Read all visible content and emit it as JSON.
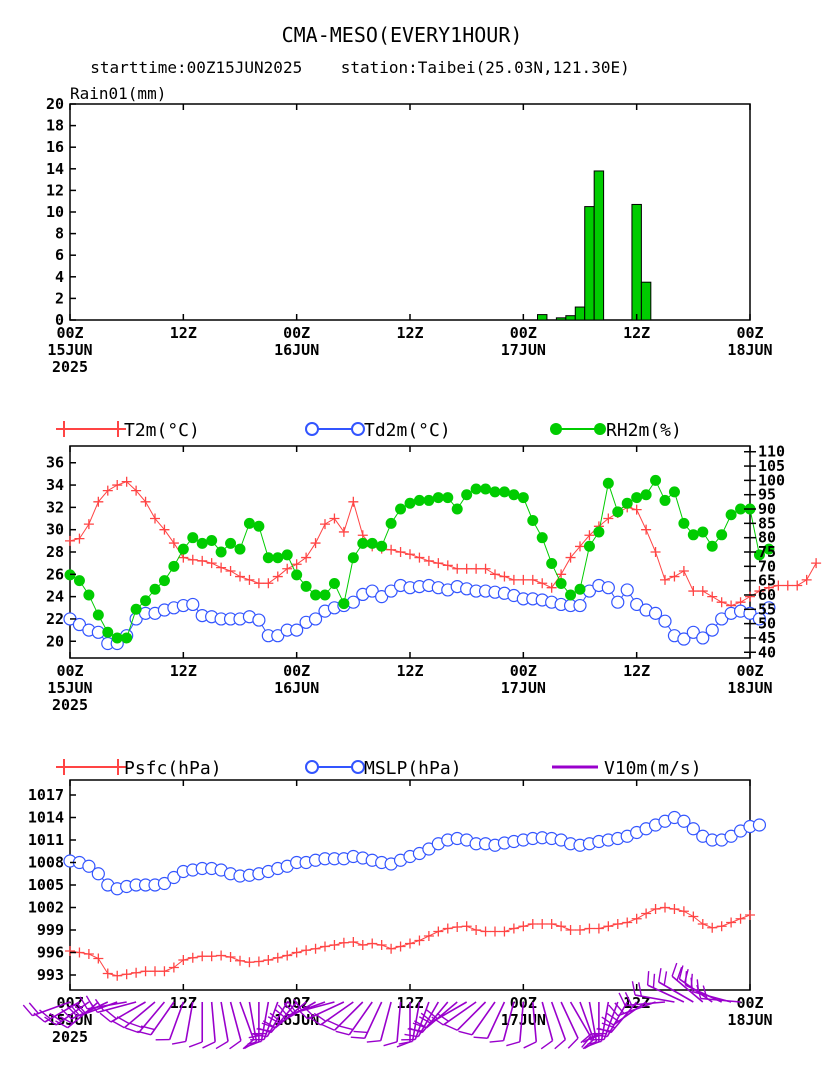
{
  "header": {
    "title": "CMA-MESO(EVERY1HOUR)",
    "subtitle": "starttime:00Z15JUN2025    station:Taibei(25.03N,121.30E)"
  },
  "x_axis": {
    "hours_total": 72,
    "ticks": [
      {
        "hour": 0,
        "line1": "00Z",
        "line2": "15JUN",
        "line3": "2025"
      },
      {
        "hour": 12,
        "line1": "12Z",
        "line2": "",
        "line3": ""
      },
      {
        "hour": 24,
        "line1": "00Z",
        "line2": "16JUN",
        "line3": ""
      },
      {
        "hour": 36,
        "line1": "12Z",
        "line2": "",
        "line3": ""
      },
      {
        "hour": 48,
        "line1": "00Z",
        "line2": "17JUN",
        "line3": ""
      },
      {
        "hour": 60,
        "line1": "12Z",
        "line2": "",
        "line3": ""
      },
      {
        "hour": 72,
        "line1": "00Z",
        "line2": "18JUN",
        "line3": ""
      }
    ]
  },
  "chart_data": [
    {
      "type": "bar",
      "title": "Rain01(mm)",
      "ylim": [
        0,
        20
      ],
      "yticks": [
        0,
        2,
        4,
        6,
        8,
        10,
        12,
        14,
        16,
        18,
        20
      ],
      "color": "#00cc00",
      "bars": [
        {
          "hour": 50,
          "value": 0.5
        },
        {
          "hour": 52,
          "value": 0.2
        },
        {
          "hour": 53,
          "value": 0.4
        },
        {
          "hour": 54,
          "value": 1.2
        },
        {
          "hour": 55,
          "value": 10.5
        },
        {
          "hour": 56,
          "value": 13.8
        },
        {
          "hour": 60,
          "value": 10.7
        },
        {
          "hour": 61,
          "value": 3.5
        }
      ]
    },
    {
      "type": "line",
      "ylim_left": [
        18.5,
        37.5
      ],
      "yticks_left": [
        20,
        22,
        24,
        26,
        28,
        30,
        32,
        34,
        36
      ],
      "ylim_right": [
        38,
        112
      ],
      "yticks_right": [
        40,
        45,
        50,
        55,
        60,
        65,
        70,
        75,
        80,
        85,
        90,
        95,
        100,
        105,
        110
      ],
      "series": [
        {
          "name": "T2m(°C)",
          "axis": "left",
          "marker": "plus",
          "color": "#ff4444",
          "values": [
            29.0,
            29.2,
            30.5,
            32.5,
            33.5,
            34.0,
            34.3,
            33.5,
            32.5,
            31.0,
            30.0,
            28.8,
            27.5,
            27.3,
            27.2,
            27.0,
            26.6,
            26.3,
            25.8,
            25.5,
            25.2,
            25.2,
            25.8,
            26.5,
            26.9,
            27.5,
            28.8,
            30.5,
            31.0,
            29.8,
            32.5,
            29.5,
            28.5,
            28.3,
            28.2,
            28.0,
            27.8,
            27.5,
            27.2,
            27.0,
            26.8,
            26.5,
            26.5,
            26.5,
            26.5,
            26.0,
            25.8,
            25.5,
            25.5,
            25.5,
            25.2,
            24.8,
            26.0,
            27.5,
            28.5,
            29.5,
            30.3,
            31.0,
            31.5,
            32.0,
            31.8,
            30.0,
            28.0,
            25.5,
            25.8,
            26.3,
            24.5,
            24.5,
            24.0,
            23.5,
            23.2,
            23.5,
            24.0,
            24.5,
            24.8,
            25.0,
            25.0,
            25.0,
            25.5,
            27.0
          ]
        },
        {
          "name": "Td2m(°C)",
          "axis": "left",
          "marker": "circle",
          "color": "#3355ff",
          "values": [
            22.0,
            21.5,
            21.0,
            20.8,
            19.8,
            19.8,
            20.5,
            22.0,
            22.5,
            22.5,
            22.8,
            23.0,
            23.2,
            23.3,
            22.3,
            22.2,
            22.0,
            22.0,
            22.0,
            22.2,
            21.9,
            20.5,
            20.5,
            21.0,
            21.0,
            21.7,
            22.0,
            22.7,
            23.0,
            23.2,
            23.5,
            24.2,
            24.5,
            24.0,
            24.5,
            25.0,
            24.8,
            24.9,
            25.0,
            24.8,
            24.6,
            24.9,
            24.7,
            24.5,
            24.5,
            24.4,
            24.3,
            24.1,
            23.8,
            23.8,
            23.7,
            23.5,
            23.3,
            23.2,
            23.2,
            24.5,
            25.0,
            24.8,
            23.5,
            24.6,
            23.3,
            22.8,
            22.5,
            21.8,
            20.5,
            20.2,
            20.8,
            20.3,
            21.0,
            22.0,
            22.5,
            22.7,
            22.5,
            22.0,
            23.0
          ]
        },
        {
          "name": "RH2m(%)",
          "axis": "right",
          "marker": "dot",
          "color": "#00cc00",
          "values": [
            67,
            65,
            60,
            53,
            47,
            45,
            45,
            55,
            58,
            62,
            65,
            70,
            76,
            80,
            78,
            79,
            75,
            78,
            76,
            85,
            84,
            73,
            73,
            74,
            67,
            63,
            60,
            60,
            64,
            57,
            73,
            78,
            78,
            77,
            85,
            90,
            92,
            93,
            93,
            94,
            94,
            90,
            95,
            97,
            97,
            96,
            96,
            95,
            94,
            86,
            80,
            71,
            64,
            60,
            62,
            77,
            82,
            99,
            89,
            92,
            94,
            95,
            100,
            93,
            96,
            85,
            81,
            82,
            77,
            81,
            88,
            90,
            90,
            74,
            76
          ]
        }
      ]
    },
    {
      "type": "line",
      "ylim": [
        991,
        1019
      ],
      "yticks": [
        993,
        996,
        999,
        1002,
        1005,
        1008,
        1011,
        1014,
        1017
      ],
      "series": [
        {
          "name": "Psfc(hPa)",
          "marker": "plus",
          "color": "#ff4444",
          "values": [
            996.2,
            996.0,
            995.8,
            995.2,
            993.2,
            992.9,
            993.1,
            993.3,
            993.5,
            993.5,
            993.5,
            994.0,
            995.0,
            995.3,
            995.5,
            995.5,
            995.6,
            995.4,
            994.9,
            994.7,
            994.8,
            995.0,
            995.3,
            995.6,
            996.0,
            996.3,
            996.5,
            996.8,
            997.0,
            997.3,
            997.4,
            997.0,
            997.2,
            997.0,
            996.5,
            996.8,
            997.2,
            997.6,
            998.2,
            998.8,
            999.2,
            999.4,
            999.5,
            999.0,
            998.8,
            998.8,
            998.8,
            999.2,
            999.5,
            999.8,
            999.8,
            999.8,
            999.5,
            999.0,
            999.0,
            999.2,
            999.2,
            999.5,
            999.8,
            1000.0,
            1000.5,
            1001.2,
            1001.8,
            1002.0,
            1001.8,
            1001.5,
            1000.8,
            999.8,
            999.3,
            999.5,
            1000.0,
            1000.5,
            1001.0
          ]
        },
        {
          "name": "MSLP(hPa)",
          "marker": "circle",
          "color": "#3355ff",
          "values": [
            1008.2,
            1008.0,
            1007.5,
            1006.5,
            1005.0,
            1004.5,
            1004.8,
            1005.0,
            1005.0,
            1005.0,
            1005.2,
            1006.0,
            1006.8,
            1007.0,
            1007.2,
            1007.2,
            1007.0,
            1006.5,
            1006.2,
            1006.3,
            1006.5,
            1006.8,
            1007.2,
            1007.5,
            1008.0,
            1008.0,
            1008.3,
            1008.5,
            1008.5,
            1008.5,
            1008.8,
            1008.6,
            1008.3,
            1008.0,
            1007.8,
            1008.3,
            1008.8,
            1009.2,
            1009.8,
            1010.5,
            1011.0,
            1011.2,
            1011.0,
            1010.5,
            1010.5,
            1010.3,
            1010.6,
            1010.8,
            1011.0,
            1011.2,
            1011.3,
            1011.2,
            1011.0,
            1010.5,
            1010.3,
            1010.5,
            1010.8,
            1011.0,
            1011.2,
            1011.5,
            1012.0,
            1012.5,
            1013.0,
            1013.5,
            1014.0,
            1013.5,
            1012.5,
            1011.5,
            1011.0,
            1011.0,
            1011.5,
            1012.2,
            1012.8,
            1013.0
          ]
        },
        {
          "name": "V10m(m/s)",
          "marker": "barb",
          "color": "#9900cc",
          "directions_deg": [
            250,
            240,
            235,
            230,
            245,
            250,
            260,
            255,
            240,
            230,
            220,
            215,
            200,
            190,
            180,
            175,
            170,
            165,
            160,
            170,
            180,
            190,
            200,
            210,
            220,
            230,
            240,
            250,
            255,
            245,
            235,
            225,
            215,
            205,
            195,
            185,
            180,
            190,
            200,
            210,
            220,
            230,
            240,
            235,
            225,
            215,
            205,
            195,
            185,
            175,
            165,
            160,
            155,
            150,
            160,
            170,
            180,
            190,
            200,
            210,
            220,
            235,
            250,
            265,
            280,
            295,
            300,
            310,
            305,
            295,
            285,
            275
          ],
          "speeds": [
            6,
            6,
            7,
            7,
            8,
            7,
            6,
            6,
            5,
            5,
            5,
            5,
            4,
            4,
            4,
            4,
            4,
            4,
            4,
            4,
            4,
            5,
            5,
            5,
            5,
            6,
            6,
            6,
            6,
            6,
            5,
            5,
            5,
            5,
            4,
            4,
            4,
            4,
            4,
            5,
            5,
            5,
            5,
            5,
            4,
            4,
            4,
            4,
            4,
            4,
            4,
            4,
            4,
            4,
            5,
            5,
            5,
            5,
            5,
            5,
            5,
            5,
            6,
            6,
            6,
            7,
            7,
            7,
            7,
            7,
            6,
            6
          ]
        }
      ]
    }
  ]
}
